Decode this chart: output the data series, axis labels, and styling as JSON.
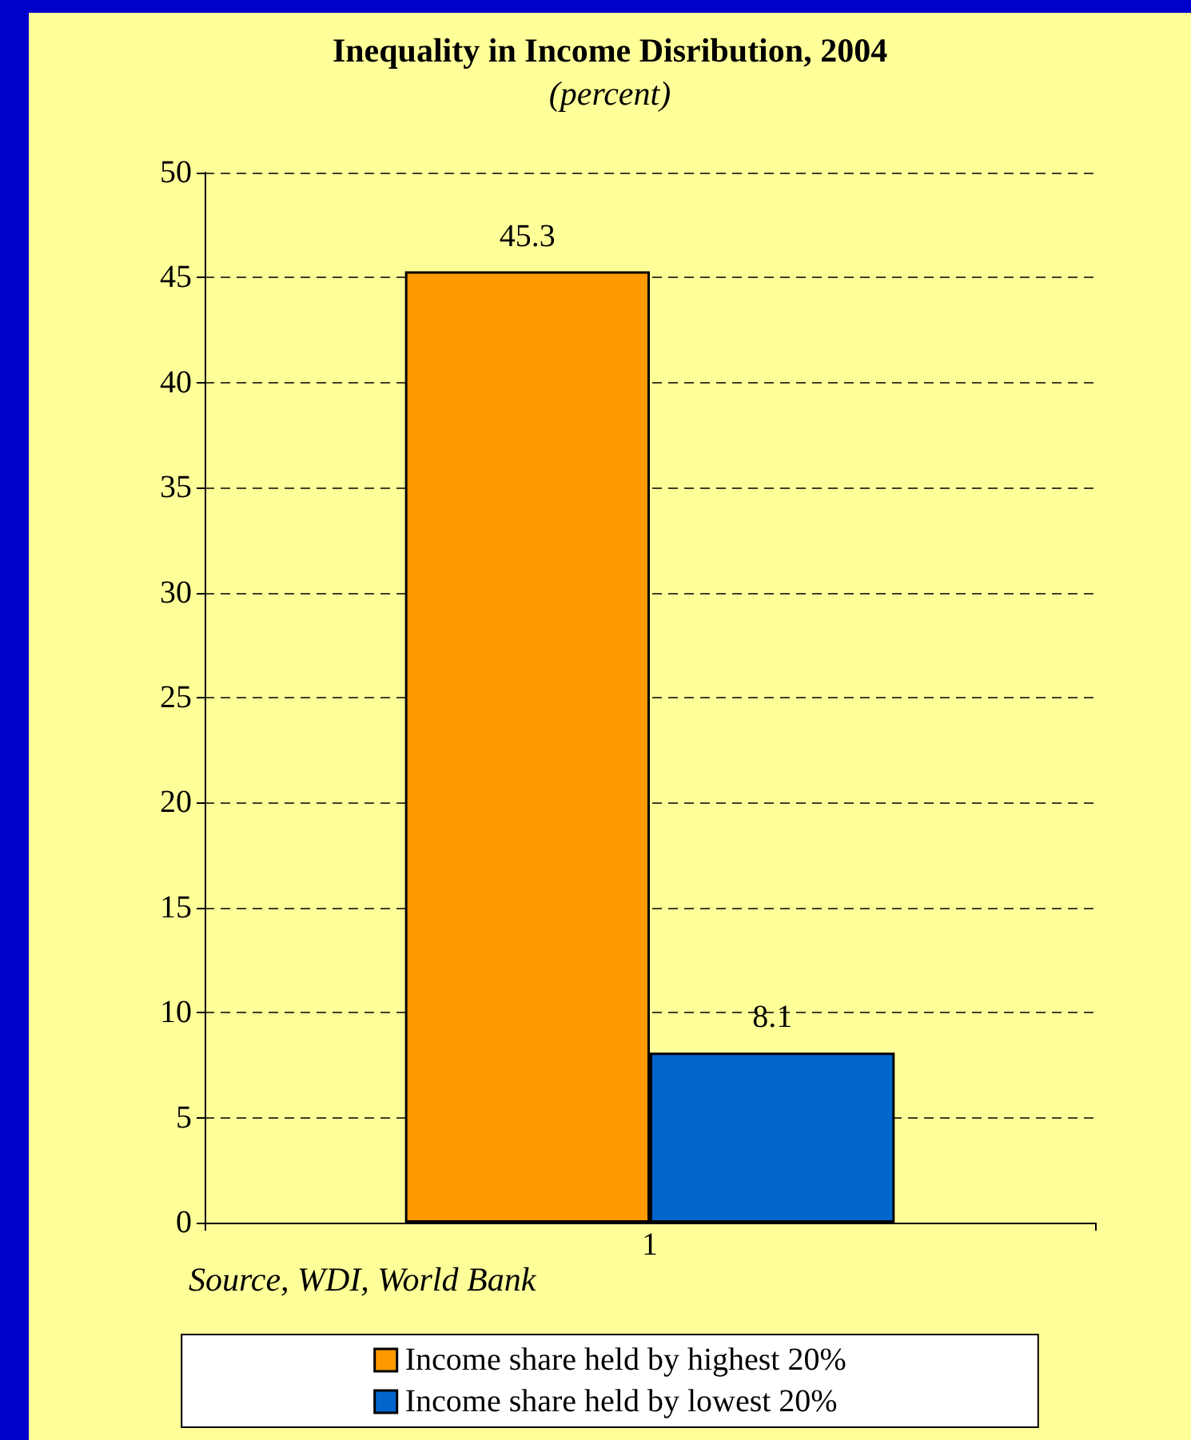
{
  "chart_data": {
    "type": "bar",
    "title": "Inequality in Income Disribution, 2004",
    "subtitle": "(percent)",
    "categories": [
      "1"
    ],
    "series": [
      {
        "name": "Income share held by highest 20%",
        "color": "#ff9900",
        "values": [
          45.3
        ]
      },
      {
        "name": "Income share held by lowest 20%",
        "color": "#0066cc",
        "values": [
          8.1
        ]
      }
    ],
    "ylim": [
      0,
      50
    ],
    "yticks": [
      0,
      5,
      10,
      15,
      20,
      25,
      30,
      35,
      40,
      45,
      50
    ],
    "grid": "y",
    "legend": "bottom",
    "data_labels": true,
    "annotations": [
      "Source, WDI, World Bank"
    ]
  }
}
